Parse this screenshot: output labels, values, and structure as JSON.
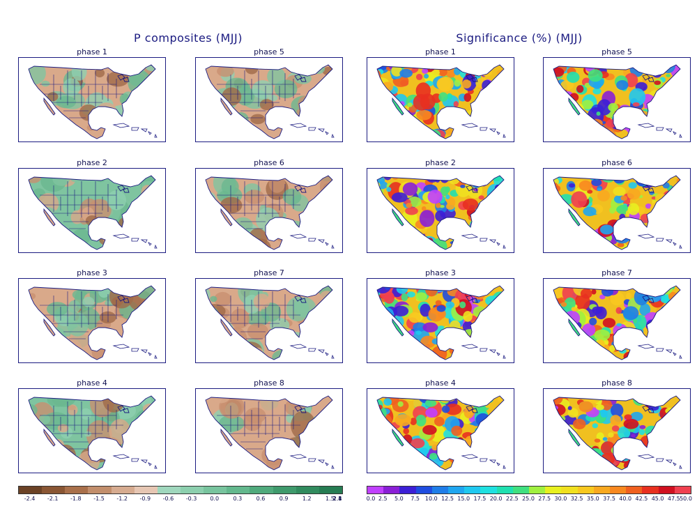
{
  "titles": {
    "left": "P composites (MJJ)",
    "right": "Significance (%) (MJJ)"
  },
  "phase_labels": [
    "phase 1",
    "phase 5",
    "phase 2",
    "phase 6",
    "phase 3",
    "phase 7",
    "phase 4",
    "phase 8"
  ],
  "composite_colorbar": {
    "colors": [
      "#6b4226",
      "#8a5634",
      "#a9704b",
      "#c28e6c",
      "#d6ab90",
      "#e6c6b3",
      "#9fd7bd",
      "#8ccfae",
      "#78c49e",
      "#63b88d",
      "#50aa7c",
      "#3f9a6c",
      "#318b5e",
      "#267c52"
    ],
    "labels": [
      "-2.4",
      "-2.1",
      "-1.8",
      "-1.5",
      "-1.2",
      "-0.9",
      "-0.6",
      "-0.3",
      "0.0",
      "0.3",
      "0.6",
      "0.9",
      "1.2",
      "1.5",
      "1.8",
      "2.1",
      "2.4"
    ]
  },
  "significance_colorbar": {
    "colors": [
      "#c040ff",
      "#8a1fd6",
      "#3c1fd6",
      "#1f4de0",
      "#1f7de8",
      "#1fa6f0",
      "#1fc8f0",
      "#1fe0e0",
      "#20e0b0",
      "#40e080",
      "#a0f040",
      "#e8f020",
      "#f0e020",
      "#f8c820",
      "#f8a820",
      "#f88820",
      "#f06020",
      "#e83020",
      "#d01020",
      "#f04050"
    ],
    "labels": [
      "0.0",
      "2.5",
      "5.0",
      "7.5",
      "10.0",
      "12.5",
      "15.0",
      "17.5",
      "20.0",
      "22.5",
      "25.0",
      "27.5",
      "30.0",
      "32.5",
      "35.0",
      "37.5",
      "40.0",
      "42.5",
      "45.0",
      "47.5",
      "50.0"
    ]
  }
}
